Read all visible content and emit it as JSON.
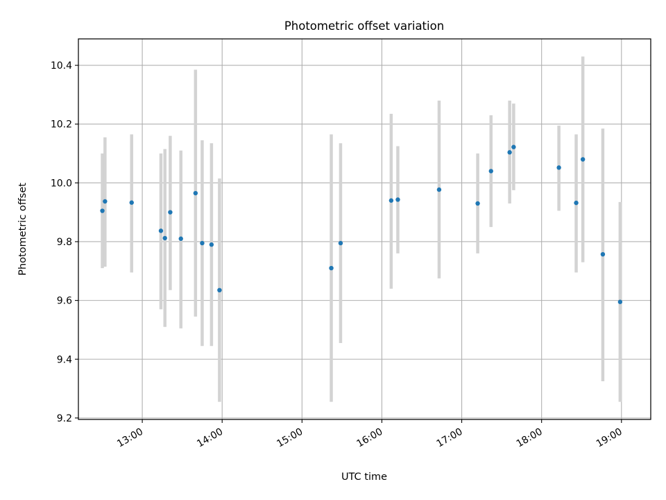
{
  "chart_data": {
    "type": "scatter",
    "title": "Photometric offset variation",
    "xlabel": "UTC time",
    "ylabel": "Photometric offset",
    "x_is_time": true,
    "xlim": [
      "12:12",
      "19:22"
    ],
    "ylim": [
      9.195,
      10.49
    ],
    "x_ticks": [
      "13:00",
      "14:00",
      "15:00",
      "16:00",
      "17:00",
      "18:00",
      "19:00"
    ],
    "y_ticks": [
      9.2,
      9.4,
      9.6,
      9.8,
      10.0,
      10.2,
      10.4
    ],
    "y_tick_labels": [
      "9.2",
      "9.4",
      "9.6",
      "9.8",
      "10.0",
      "10.2",
      "10.4"
    ],
    "grid": true,
    "colors": {
      "marker": "#1f77b4",
      "errorbar": "#d3d3d3",
      "grid": "#b0b0b0",
      "axes": "#000000"
    },
    "points": [
      {
        "t": "12:30",
        "y": 9.905,
        "lo": 9.71,
        "hi": 10.1
      },
      {
        "t": "12:32",
        "y": 9.937,
        "lo": 9.715,
        "hi": 10.155
      },
      {
        "t": "12:52",
        "y": 9.933,
        "lo": 9.695,
        "hi": 10.165
      },
      {
        "t": "13:14",
        "y": 9.837,
        "lo": 9.57,
        "hi": 10.1
      },
      {
        "t": "13:17",
        "y": 9.812,
        "lo": 9.51,
        "hi": 10.115
      },
      {
        "t": "13:21",
        "y": 9.9,
        "lo": 9.635,
        "hi": 10.16
      },
      {
        "t": "13:29",
        "y": 9.81,
        "lo": 9.505,
        "hi": 10.11
      },
      {
        "t": "13:40",
        "y": 9.965,
        "lo": 9.545,
        "hi": 10.385
      },
      {
        "t": "13:45",
        "y": 9.795,
        "lo": 9.445,
        "hi": 10.145
      },
      {
        "t": "13:52",
        "y": 9.79,
        "lo": 9.445,
        "hi": 10.135
      },
      {
        "t": "13:58",
        "y": 9.635,
        "lo": 9.255,
        "hi": 10.015
      },
      {
        "t": "15:22",
        "y": 9.71,
        "lo": 9.255,
        "hi": 10.165
      },
      {
        "t": "15:29",
        "y": 9.795,
        "lo": 9.455,
        "hi": 10.135
      },
      {
        "t": "16:07",
        "y": 9.94,
        "lo": 9.64,
        "hi": 10.235
      },
      {
        "t": "16:12",
        "y": 9.943,
        "lo": 9.76,
        "hi": 10.125
      },
      {
        "t": "16:43",
        "y": 9.977,
        "lo": 9.675,
        "hi": 10.28
      },
      {
        "t": "17:12",
        "y": 9.93,
        "lo": 9.76,
        "hi": 10.1
      },
      {
        "t": "17:22",
        "y": 10.04,
        "lo": 9.85,
        "hi": 10.23
      },
      {
        "t": "17:36",
        "y": 10.104,
        "lo": 9.93,
        "hi": 10.28
      },
      {
        "t": "17:39",
        "y": 10.122,
        "lo": 9.975,
        "hi": 10.27
      },
      {
        "t": "18:13",
        "y": 10.052,
        "lo": 9.905,
        "hi": 10.195
      },
      {
        "t": "18:26",
        "y": 9.932,
        "lo": 9.695,
        "hi": 10.165
      },
      {
        "t": "18:31",
        "y": 10.08,
        "lo": 9.73,
        "hi": 10.43
      },
      {
        "t": "18:46",
        "y": 9.757,
        "lo": 9.325,
        "hi": 10.185
      },
      {
        "t": "18:59",
        "y": 9.595,
        "lo": 9.255,
        "hi": 9.935
      }
    ]
  }
}
